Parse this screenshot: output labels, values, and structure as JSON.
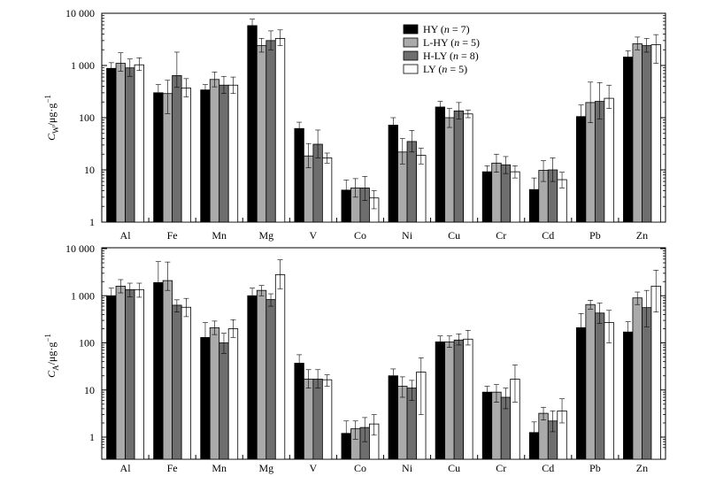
{
  "chart_data": [
    {
      "type": "bar",
      "ylabel_main": "C",
      "ylabel_sub": "W",
      "ylabel_unit": "/μg·g",
      "ylabel_sup": "−1",
      "y_scale": "log",
      "ylim": [
        1,
        10000
      ],
      "yticks": [
        {
          "v": 1,
          "label": "1"
        },
        {
          "v": 10,
          "label": "10"
        },
        {
          "v": 100,
          "label": "100"
        },
        {
          "v": 1000,
          "label": "1 000"
        },
        {
          "v": 10000,
          "label": "10 000"
        }
      ],
      "categories": [
        "Al",
        "Fe",
        "Mn",
        "Mg",
        "V",
        "Co",
        "Ni",
        "Cu",
        "Cr",
        "Cd",
        "Pb",
        "Zn"
      ],
      "series": [
        {
          "name": "HY",
          "n": "7",
          "color": "#000000",
          "values": [
            880,
            300,
            340,
            5800,
            62,
            4.1,
            72,
            160,
            9.2,
            4.2,
            105,
            1450
          ],
          "err_hi": [
            1130,
            430,
            430,
            7700,
            82,
            6.4,
            100,
            205,
            12,
            7,
            175,
            1900
          ],
          "err_lo": [
            730,
            230,
            260,
            4900,
            44,
            2.7,
            48,
            120,
            6.5,
            2.6,
            70,
            1100
          ]
        },
        {
          "name": "L-HY",
          "n": "5",
          "color": "#aaaaaa",
          "values": [
            1100,
            290,
            540,
            2400,
            18.5,
            4.5,
            22,
            100,
            13.5,
            9.8,
            195,
            2600
          ],
          "err_hi": [
            1750,
            520,
            750,
            3300,
            32,
            6.8,
            40,
            150,
            20,
            15,
            480,
            3500
          ],
          "err_lo": [
            780,
            120,
            390,
            1800,
            11,
            3,
            13,
            65,
            9,
            6,
            80,
            2000
          ]
        },
        {
          "name": "H-LY",
          "n": "8",
          "color": "#6e6e6e",
          "values": [
            900,
            640,
            420,
            3000,
            31,
            4.5,
            35,
            135,
            12.5,
            10,
            205,
            2400
          ],
          "err_hi": [
            1330,
            1800,
            620,
            4600,
            58,
            7.5,
            57,
            195,
            18,
            17,
            470,
            3300
          ],
          "err_lo": [
            620,
            380,
            290,
            2000,
            17,
            2.6,
            22,
            95,
            8.5,
            6,
            95,
            1800
          ]
        },
        {
          "name": "LY",
          "n": "5",
          "color": "#ffffff",
          "values": [
            1030,
            370,
            420,
            3300,
            17,
            2.9,
            19,
            118,
            9.2,
            6.5,
            235,
            2500
          ],
          "err_hi": [
            1400,
            560,
            600,
            4800,
            21,
            4,
            26,
            140,
            12,
            9,
            420,
            3900
          ],
          "err_lo": [
            800,
            250,
            290,
            2400,
            13.5,
            1.8,
            13,
            100,
            7,
            4.5,
            150,
            1100
          ]
        }
      ]
    },
    {
      "type": "bar",
      "ylabel_main": "C",
      "ylabel_sub": "A",
      "ylabel_unit": "/μg·g",
      "ylabel_sup": "−1",
      "y_scale": "log",
      "ylim": [
        0.5,
        10000
      ],
      "yticks": [
        {
          "v": 1,
          "label": "1"
        },
        {
          "v": 10,
          "label": "10"
        },
        {
          "v": 100,
          "label": "100"
        },
        {
          "v": 1000,
          "label": "1 000"
        },
        {
          "v": 10000,
          "label": "10 000"
        }
      ],
      "categories": [
        "Al",
        "Fe",
        "Mn",
        "Mg",
        "V",
        "Co",
        "Ni",
        "Cu",
        "Cr",
        "Cd",
        "Pb",
        "Zn"
      ],
      "series": [
        {
          "name": "HY",
          "n": "7",
          "color": "#000000",
          "values": [
            1000,
            1900,
            130,
            1000,
            37,
            1.2,
            20,
            105,
            9,
            1.25,
            210,
            170
          ],
          "err_hi": [
            1450,
            5300,
            270,
            1450,
            56,
            2.2,
            28,
            140,
            12,
            2.1,
            420,
            280
          ],
          "err_lo": [
            700,
            1200,
            60,
            700,
            26,
            0.6,
            14,
            80,
            6,
            0.55,
            130,
            100
          ]
        },
        {
          "name": "L-HY",
          "n": "5",
          "color": "#aaaaaa",
          "values": [
            1600,
            2100,
            210,
            1300,
            17,
            1.5,
            12,
            105,
            9,
            3.2,
            650,
            900
          ],
          "err_hi": [
            2200,
            5200,
            290,
            1650,
            27,
            2.2,
            19,
            140,
            13,
            4.3,
            800,
            1200
          ],
          "err_lo": [
            1150,
            1300,
            150,
            1000,
            11,
            0.9,
            7,
            80,
            5.5,
            2.3,
            520,
            650
          ]
        },
        {
          "name": "H-LY",
          "n": "8",
          "color": "#6e6e6e",
          "values": [
            1350,
            630,
            100,
            830,
            17,
            1.6,
            11,
            115,
            7,
            2.2,
            430,
            560
          ],
          "err_hi": [
            1850,
            820,
            160,
            1100,
            27,
            2.6,
            16,
            155,
            11,
            3.6,
            700,
            1300
          ],
          "err_lo": [
            950,
            450,
            60,
            600,
            11,
            0.8,
            6,
            90,
            4,
            1.3,
            260,
            220
          ]
        },
        {
          "name": "LY",
          "n": "5",
          "color": "#ffffff",
          "values": [
            1350,
            570,
            200,
            2800,
            16.5,
            1.9,
            24,
            120,
            17,
            3.6,
            270,
            1600
          ],
          "err_hi": [
            1850,
            880,
            310,
            5800,
            21,
            3,
            48,
            185,
            34,
            6.5,
            490,
            3500
          ],
          "err_lo": [
            930,
            360,
            130,
            1400,
            12,
            1.1,
            3,
            90,
            5.5,
            2,
            100,
            450
          ]
        }
      ]
    }
  ]
}
